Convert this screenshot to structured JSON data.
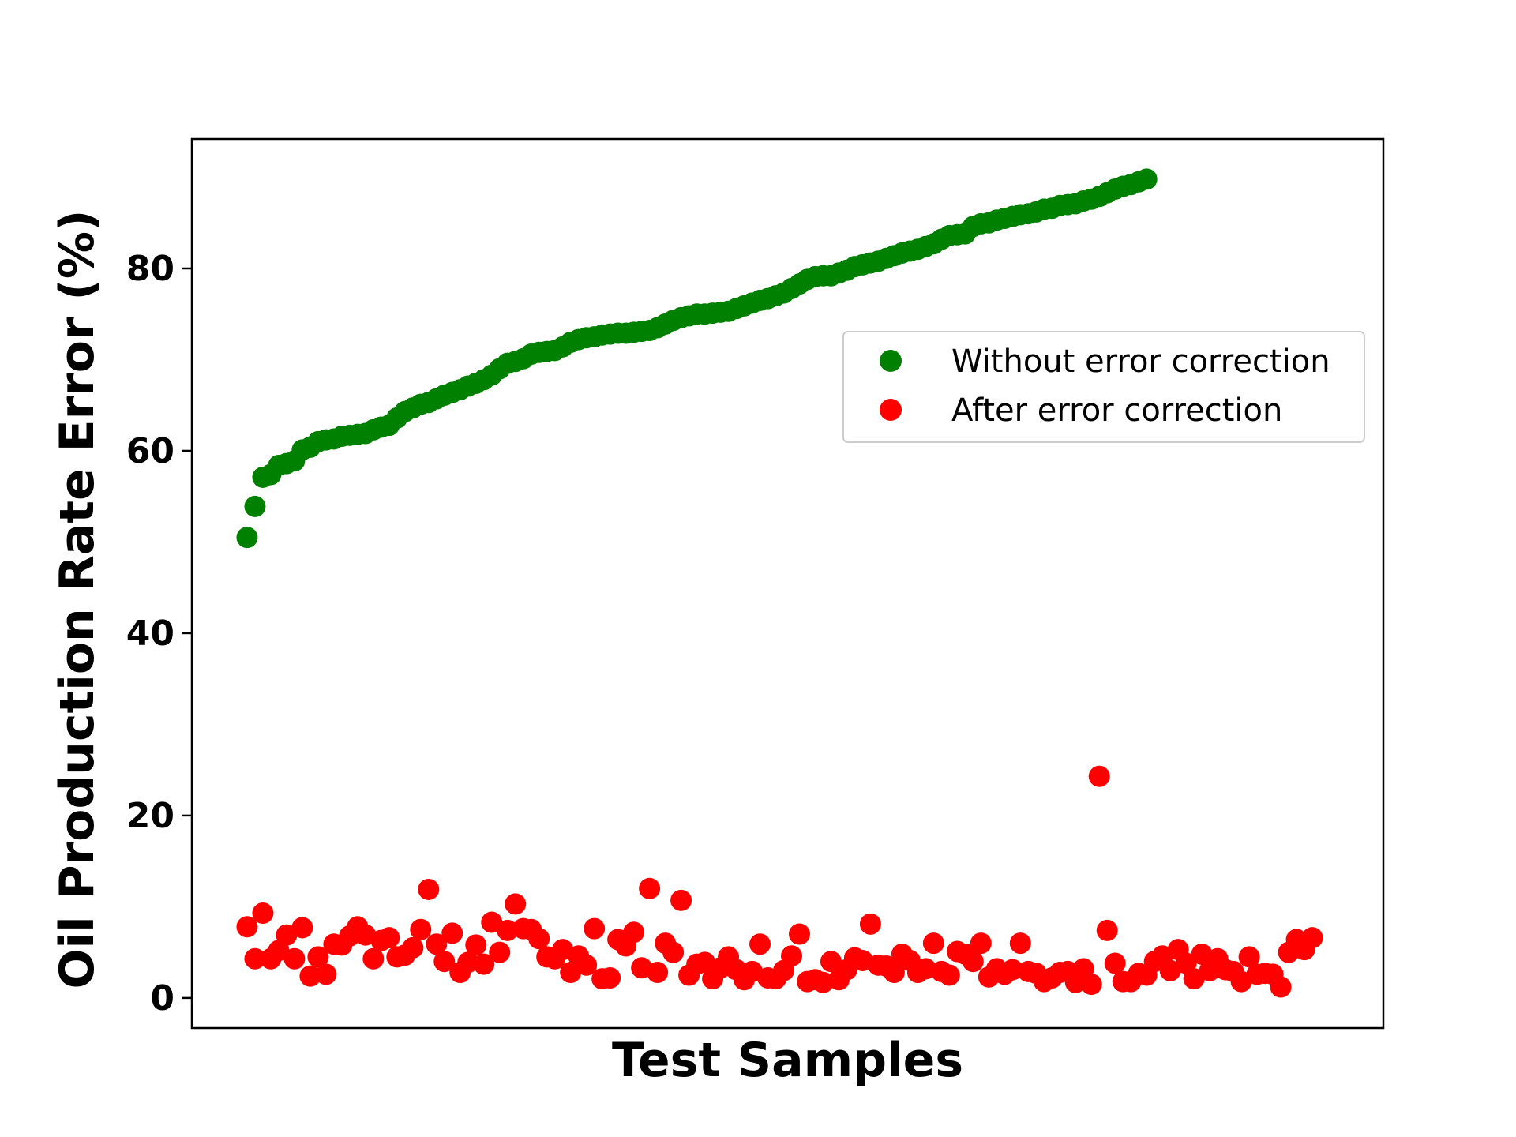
{
  "chart_data": {
    "type": "scatter",
    "title": "",
    "xlabel": "Test Samples",
    "ylabel": "Oil Production Rate Error (%)",
    "ylim": [
      -3.3,
      94.2
    ],
    "xlim": [
      -7,
      144
    ],
    "yticks": [
      0,
      20,
      40,
      60,
      80
    ],
    "x_ticks_visible": false,
    "grid": false,
    "legend_position": "right, upper-middle",
    "series": [
      {
        "name": "Without error correction",
        "color": "#008000",
        "y": [
          50.5,
          53.9,
          57.1,
          57.4,
          58.4,
          58.6,
          58.9,
          60.1,
          60.4,
          61.0,
          61.2,
          61.3,
          61.6,
          61.7,
          61.8,
          61.9,
          62.3,
          62.6,
          62.8,
          63.6,
          64.3,
          64.7,
          65.1,
          65.3,
          65.7,
          66.1,
          66.4,
          66.7,
          67.1,
          67.4,
          67.8,
          68.3,
          69.0,
          69.6,
          69.8,
          70.1,
          70.6,
          70.8,
          70.9,
          71.0,
          71.4,
          71.9,
          72.2,
          72.4,
          72.5,
          72.7,
          72.8,
          72.9,
          72.9,
          73.0,
          73.1,
          73.2,
          73.5,
          73.9,
          74.3,
          74.6,
          74.8,
          75.0,
          75.0,
          75.1,
          75.2,
          75.3,
          75.6,
          75.9,
          76.2,
          76.5,
          76.7,
          77.0,
          77.3,
          77.8,
          78.3,
          78.8,
          79.1,
          79.2,
          79.2,
          79.5,
          79.8,
          80.2,
          80.4,
          80.6,
          80.8,
          81.1,
          81.4,
          81.7,
          81.9,
          82.1,
          82.4,
          82.7,
          83.2,
          83.6,
          83.7,
          83.8,
          84.6,
          84.9,
          85.0,
          85.3,
          85.5,
          85.7,
          85.9,
          86.0,
          86.2,
          86.5,
          86.6,
          86.9,
          87.0,
          87.1,
          87.4,
          87.6,
          87.9,
          88.3,
          88.7,
          89.0,
          89.2,
          89.5,
          89.8
        ]
      },
      {
        "name": "After error correction",
        "color": "#ff0000",
        "y": [
          7.8,
          4.3,
          9.3,
          4.3,
          5.2,
          6.9,
          4.3,
          7.7,
          2.4,
          4.5,
          2.6,
          5.9,
          5.8,
          6.8,
          7.8,
          6.9,
          4.3,
          6.3,
          6.6,
          4.5,
          4.7,
          5.5,
          7.5,
          11.9,
          5.9,
          4.0,
          7.1,
          2.8,
          3.9,
          5.8,
          3.7,
          8.3,
          5.0,
          7.4,
          10.3,
          7.6,
          7.5,
          6.5,
          4.5,
          4.3,
          5.3,
          2.8,
          4.6,
          3.6,
          7.6,
          2.1,
          2.2,
          6.4,
          5.7,
          7.2,
          3.3,
          12.0,
          2.8,
          6.0,
          5.0,
          10.7,
          2.5,
          3.7,
          3.9,
          2.1,
          3.3,
          4.5,
          3.1,
          2.0,
          2.9,
          5.9,
          2.2,
          2.1,
          3.0,
          4.6,
          7.0,
          1.8,
          2.0,
          1.7,
          4.0,
          2.0,
          3.1,
          4.4,
          4.1,
          8.1,
          3.6,
          3.5,
          2.8,
          4.8,
          4.1,
          2.8,
          3.2,
          6.0,
          2.9,
          2.5,
          5.1,
          4.8,
          4.0,
          6.0,
          2.3,
          3.2,
          2.6,
          3.1,
          6.0,
          2.9,
          2.7,
          1.8,
          2.2,
          2.8,
          2.9,
          1.7,
          3.2,
          1.5,
          24.3,
          7.4,
          3.8,
          1.8,
          1.8,
          2.7,
          2.5,
          4.0,
          4.6,
          3.0,
          5.3,
          3.8,
          2.1,
          4.8,
          3.0,
          4.3,
          3.1,
          2.9,
          1.8,
          4.5,
          2.6,
          2.7,
          2.6,
          1.2,
          5.0,
          6.4,
          5.3,
          6.6
        ]
      }
    ]
  }
}
